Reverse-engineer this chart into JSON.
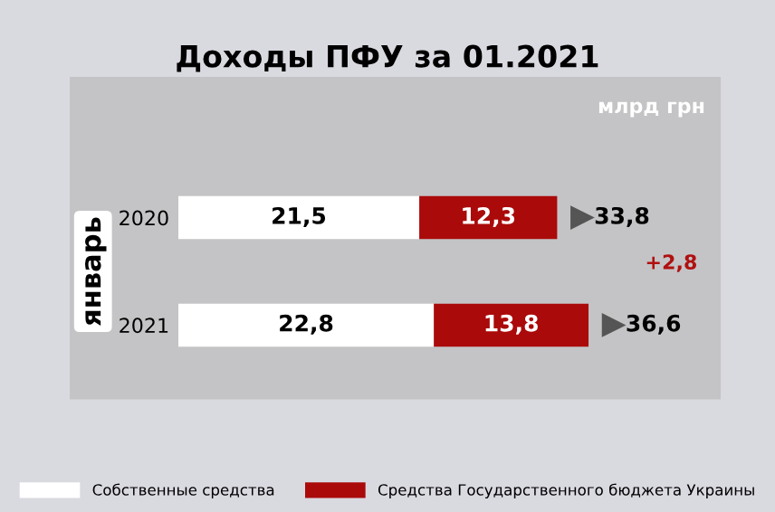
{
  "chart_data": {
    "type": "bar",
    "orientation": "horizontal",
    "stacked": true,
    "title": "Доходы ПФУ за 01.2021",
    "ylabel": "январь",
    "categories": [
      "2020",
      "2021"
    ],
    "series": [
      {
        "name": "Собственные средства",
        "color": "#ffffff",
        "values": [
          21.5,
          22.8
        ],
        "value_labels": [
          "21,5",
          "22,8"
        ]
      },
      {
        "name": "Средства Государственного бюджета Украины",
        "color": "#aa0a0a",
        "values": [
          12.3,
          13.8
        ],
        "value_labels": [
          "12,3",
          "13,8"
        ]
      }
    ],
    "totals": [
      "33,8",
      "36,6"
    ],
    "annotations": [
      "млрд грн",
      "+2,8"
    ],
    "legend": "bottom"
  }
}
